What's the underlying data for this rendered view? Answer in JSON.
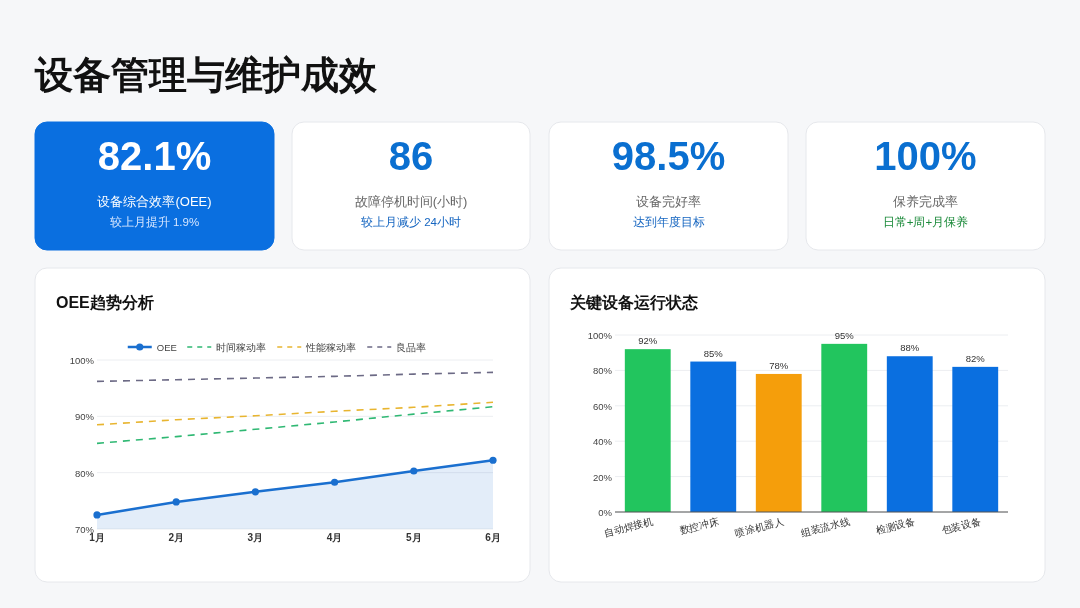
{
  "chart_data": [
    {
      "type": "other",
      "title": "设备管理与维护成效"
    },
    {
      "type": "other",
      "title": "82.1%",
      "subtitle": "设备综合效率(OEE)",
      "annotations": [
        "较上月提升 1.9%"
      ],
      "color": "#0a6fe0"
    },
    {
      "type": "other",
      "title": "86",
      "subtitle": "故障停机时间(小时)",
      "annotations": [
        "较上月减少 24小时"
      ]
    },
    {
      "type": "other",
      "title": "98.5%",
      "subtitle": "设备完好率",
      "annotations": [
        "达到年度目标"
      ]
    },
    {
      "type": "other",
      "title": "100%",
      "subtitle": "保养完成率",
      "annotations": [
        "日常+周+月保养"
      ]
    },
    {
      "type": "line",
      "title": "OEE趋势分析",
      "categories": [
        "1月",
        "2月",
        "3月",
        "4月",
        "5月",
        "6月"
      ],
      "ylim": [
        70,
        100
      ],
      "yticks": [
        {
          "value": 70,
          "label": "70%"
        },
        {
          "value": 80,
          "label": "80%"
        },
        {
          "value": 90,
          "label": "90%"
        },
        {
          "value": 100,
          "label": "100%"
        }
      ],
      "grid": "y",
      "legend": "top",
      "series": [
        {
          "name": "OEE",
          "type": "area",
          "color": "#1a6fcf",
          "marker": "circle",
          "line_style": "solid",
          "values": [
            72.5,
            74.8,
            76.6,
            78.3,
            80.3,
            82.2
          ]
        },
        {
          "name": "时间稼动率",
          "type": "line",
          "color": "#2fb873",
          "marker": "none",
          "line_style": "dashed",
          "values": [
            85.2,
            86.4,
            87.7,
            89.0,
            90.4,
            91.7
          ]
        },
        {
          "name": "性能稼动率",
          "type": "line",
          "color": "#e8b530",
          "marker": "none",
          "line_style": "dashed",
          "values": [
            88.5,
            89.4,
            90.1,
            90.9,
            91.6,
            92.5
          ]
        },
        {
          "name": "良品率",
          "type": "line",
          "color": "#6c6a85",
          "marker": "none",
          "line_style": "dashed",
          "values": [
            96.2,
            96.5,
            96.8,
            97.1,
            97.5,
            97.8
          ]
        }
      ]
    },
    {
      "type": "bar",
      "title": "关键设备运行状态",
      "categories": [
        "自动焊接机",
        "数控冲床",
        "喷涂机器人",
        "组装流水线",
        "检测设备",
        "包装设备"
      ],
      "values": [
        92,
        85,
        78,
        95,
        88,
        82
      ],
      "colors": [
        "#22c55e",
        "#0a6fe0",
        "#f59e0b",
        "#22c55e",
        "#0a6fe0",
        "#0a6fe0"
      ],
      "value_labels": [
        "92%",
        "85%",
        "78%",
        "95%",
        "88%",
        "82%"
      ],
      "ylim": [
        0,
        100
      ],
      "yticks": [
        {
          "value": 0,
          "label": "0%"
        },
        {
          "value": 20,
          "label": "20%"
        },
        {
          "value": 40,
          "label": "40%"
        },
        {
          "value": 60,
          "label": "60%"
        },
        {
          "value": 80,
          "label": "80%"
        },
        {
          "value": 100,
          "label": "100%"
        }
      ],
      "grid": "y"
    }
  ]
}
